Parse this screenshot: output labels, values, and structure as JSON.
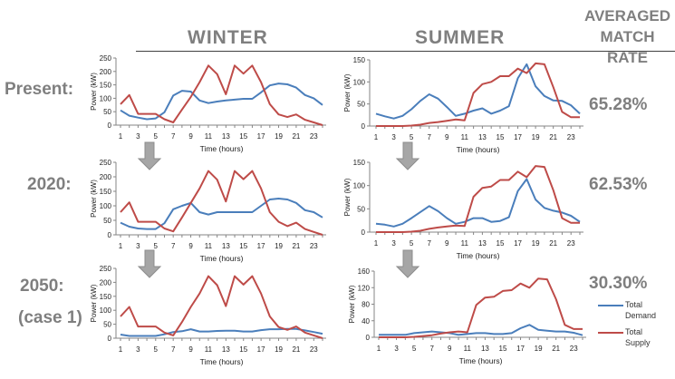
{
  "headers": {
    "winter": "WINTER",
    "summer": "SUMMER",
    "match_rate": "AVERAGED MATCH RATE"
  },
  "rows": [
    {
      "label": "Present:",
      "match_rate": "65.28%"
    },
    {
      "label": "2020:",
      "match_rate": "62.53%"
    },
    {
      "label": "2050:",
      "sublabel": "(case 1)",
      "match_rate": "30.30%"
    }
  ],
  "legend": {
    "demand": "Total Demand",
    "supply": "Total Supply"
  },
  "colors": {
    "demand": "#4a7ebb",
    "supply": "#be4b48",
    "text": "#7f7f7f"
  },
  "chart_data": [
    {
      "id": "winter-present",
      "type": "line",
      "season": "Winter",
      "scenario": "Present",
      "xlabel": "Time (hours)",
      "ylabel": "Power (kW)",
      "ylim": [
        0,
        250
      ],
      "yticks": [
        0,
        50,
        100,
        150,
        200,
        250
      ],
      "x": [
        1,
        2,
        3,
        4,
        5,
        6,
        7,
        8,
        9,
        10,
        11,
        12,
        13,
        14,
        15,
        16,
        17,
        18,
        19,
        20,
        21,
        22,
        23,
        24
      ],
      "series": [
        {
          "name": "Total Demand",
          "values": [
            55,
            35,
            28,
            22,
            25,
            48,
            110,
            128,
            125,
            92,
            82,
            88,
            92,
            95,
            98,
            98,
            122,
            148,
            155,
            152,
            140,
            112,
            100,
            75
          ]
        },
        {
          "name": "Total Supply",
          "values": [
            78,
            112,
            42,
            42,
            42,
            22,
            10,
            58,
            105,
            160,
            222,
            190,
            115,
            222,
            192,
            222,
            160,
            78,
            40,
            30,
            40,
            20,
            10,
            0
          ]
        }
      ]
    },
    {
      "id": "summer-present",
      "type": "line",
      "season": "Summer",
      "scenario": "Present",
      "xlabel": "Time (hours)",
      "ylabel": "Power (kW)",
      "ylim": [
        0,
        150
      ],
      "yticks": [
        0,
        50,
        100,
        150
      ],
      "x": [
        1,
        2,
        3,
        4,
        5,
        6,
        7,
        8,
        9,
        10,
        11,
        12,
        13,
        14,
        15,
        16,
        17,
        18,
        19,
        20,
        21,
        22,
        23,
        24
      ],
      "series": [
        {
          "name": "Total Demand",
          "values": [
            28,
            22,
            17,
            23,
            38,
            57,
            72,
            62,
            43,
            23,
            28,
            35,
            40,
            28,
            35,
            45,
            108,
            140,
            90,
            68,
            58,
            57,
            47,
            28
          ]
        },
        {
          "name": "Total Supply",
          "values": [
            0,
            0,
            0,
            0,
            1,
            3,
            7,
            9,
            12,
            15,
            13,
            75,
            95,
            100,
            113,
            113,
            130,
            120,
            142,
            140,
            88,
            32,
            20,
            20
          ]
        }
      ]
    },
    {
      "id": "winter-2020",
      "type": "line",
      "season": "Winter",
      "scenario": "2020",
      "xlabel": "Time (hours)",
      "ylabel": "Power (kW)",
      "ylim": [
        0,
        250
      ],
      "yticks": [
        0,
        50,
        100,
        150,
        200,
        250
      ],
      "x": [
        1,
        2,
        3,
        4,
        5,
        6,
        7,
        8,
        9,
        10,
        11,
        12,
        13,
        14,
        15,
        16,
        17,
        18,
        19,
        20,
        21,
        22,
        23,
        24
      ],
      "series": [
        {
          "name": "Total Demand",
          "values": [
            42,
            28,
            22,
            20,
            20,
            40,
            88,
            100,
            110,
            78,
            70,
            78,
            78,
            78,
            78,
            78,
            100,
            122,
            125,
            122,
            110,
            85,
            78,
            60
          ]
        },
        {
          "name": "Total Supply",
          "values": [
            78,
            112,
            45,
            45,
            45,
            22,
            12,
            60,
            110,
            160,
            220,
            190,
            115,
            220,
            192,
            220,
            160,
            78,
            45,
            30,
            42,
            20,
            10,
            0
          ]
        }
      ]
    },
    {
      "id": "summer-2020",
      "type": "line",
      "season": "Summer",
      "scenario": "2020",
      "xlabel": "Time (hours)",
      "ylabel": "Power (kW)",
      "ylim": [
        0,
        150
      ],
      "yticks": [
        0,
        50,
        100,
        150
      ],
      "x": [
        1,
        2,
        3,
        4,
        5,
        6,
        7,
        8,
        9,
        10,
        11,
        12,
        13,
        14,
        15,
        16,
        17,
        18,
        19,
        20,
        21,
        22,
        23,
        24
      ],
      "series": [
        {
          "name": "Total Demand",
          "values": [
            18,
            16,
            12,
            18,
            30,
            43,
            56,
            45,
            30,
            18,
            22,
            30,
            30,
            22,
            24,
            32,
            88,
            114,
            70,
            52,
            46,
            42,
            35,
            22
          ]
        },
        {
          "name": "Total Supply",
          "values": [
            0,
            0,
            0,
            0,
            1,
            3,
            7,
            10,
            12,
            14,
            13,
            76,
            95,
            98,
            112,
            112,
            130,
            118,
            142,
            140,
            90,
            30,
            20,
            20
          ]
        }
      ]
    },
    {
      "id": "winter-2050",
      "type": "line",
      "season": "Winter",
      "scenario": "2050 (case 1)",
      "xlabel": "Time (hours)",
      "ylabel": "Power (kW)",
      "ylim": [
        0,
        250
      ],
      "yticks": [
        0,
        50,
        100,
        150,
        200,
        250
      ],
      "x": [
        1,
        2,
        3,
        4,
        5,
        6,
        7,
        8,
        9,
        10,
        11,
        12,
        13,
        14,
        15,
        16,
        17,
        18,
        19,
        20,
        21,
        22,
        23,
        24
      ],
      "series": [
        {
          "name": "Total Demand",
          "values": [
            13,
            8,
            8,
            8,
            8,
            14,
            22,
            25,
            32,
            24,
            24,
            26,
            27,
            27,
            24,
            24,
            29,
            32,
            32,
            33,
            33,
            28,
            22,
            16
          ]
        },
        {
          "name": "Total Supply",
          "values": [
            78,
            112,
            42,
            42,
            42,
            20,
            10,
            58,
            112,
            160,
            222,
            190,
            115,
            222,
            192,
            222,
            160,
            78,
            40,
            30,
            42,
            20,
            10,
            0
          ]
        }
      ]
    },
    {
      "id": "summer-2050",
      "type": "line",
      "season": "Summer",
      "scenario": "2050 (case 1)",
      "xlabel": "Time (hours)",
      "ylabel": "Power (kW)",
      "ylim": [
        0,
        160
      ],
      "yticks": [
        0,
        40,
        80,
        120,
        160
      ],
      "x": [
        1,
        2,
        3,
        4,
        5,
        6,
        7,
        8,
        9,
        10,
        11,
        12,
        13,
        14,
        15,
        16,
        17,
        18,
        19,
        20,
        21,
        22,
        23,
        24
      ],
      "series": [
        {
          "name": "Total Demand",
          "values": [
            6,
            6,
            6,
            6,
            10,
            12,
            14,
            12,
            10,
            6,
            8,
            10,
            10,
            8,
            8,
            10,
            22,
            30,
            18,
            16,
            14,
            14,
            11,
            5
          ]
        },
        {
          "name": "Total Supply",
          "values": [
            0,
            0,
            0,
            0,
            1,
            3,
            5,
            9,
            12,
            14,
            12,
            78,
            96,
            98,
            112,
            114,
            130,
            120,
            142,
            140,
            92,
            30,
            20,
            20
          ]
        }
      ]
    }
  ]
}
